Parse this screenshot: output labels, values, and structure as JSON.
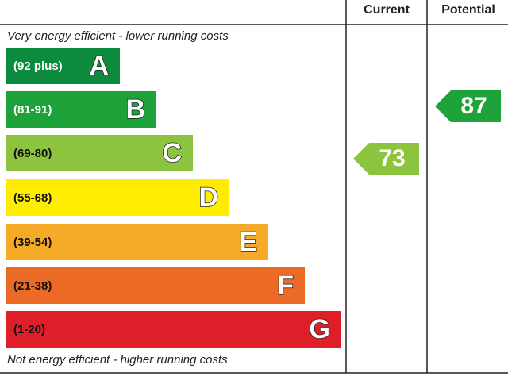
{
  "header": {
    "current": "Current",
    "potential": "Potential"
  },
  "top_note": "Very energy efficient - lower running costs",
  "bottom_note": "Not energy efficient - higher running costs",
  "bands": [
    {
      "range": "(92 plus)",
      "letter": "A",
      "color": "#0c8a3e"
    },
    {
      "range": "(81-91)",
      "letter": "B",
      "color": "#1ea23a"
    },
    {
      "range": "(69-80)",
      "letter": "C",
      "color": "#8dc43f"
    },
    {
      "range": "(55-68)",
      "letter": "D",
      "color": "#ffec00"
    },
    {
      "range": "(39-54)",
      "letter": "E",
      "color": "#f5ab27"
    },
    {
      "range": "(21-38)",
      "letter": "F",
      "color": "#eb6a25"
    },
    {
      "range": "(1-20)",
      "letter": "G",
      "color": "#de1f2a"
    }
  ],
  "current": {
    "value": 73,
    "color": "#8dc43f"
  },
  "potential": {
    "value": 87,
    "color": "#1ea23a"
  }
}
